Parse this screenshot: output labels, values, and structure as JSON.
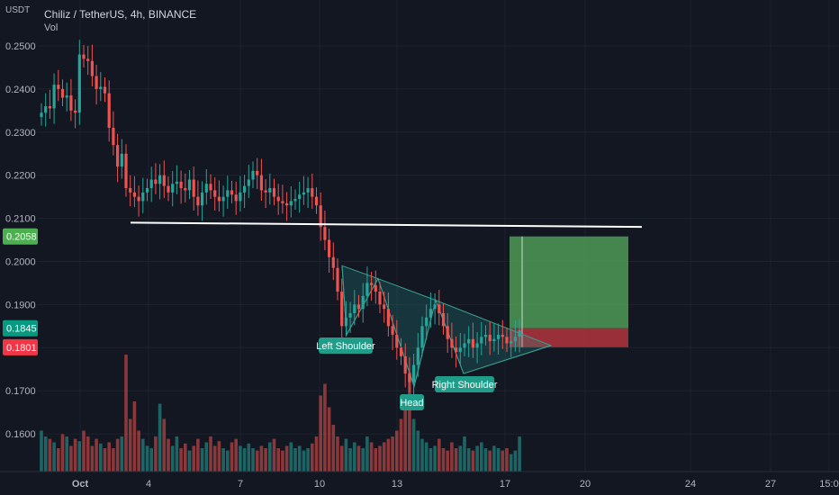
{
  "header": {
    "symbol_line": "Chiliz / TetherUS, 4h, BINANCE",
    "volume_label": "Vol",
    "unit": "USDT"
  },
  "colors": {
    "background": "#131722",
    "up": "#26a69a",
    "down": "#ef5350",
    "grid": "#1e222d",
    "text": "#b2b5be",
    "neckline": "#ffffff",
    "pattern_fill": "rgba(38,166,154,0.22)",
    "target_zone": "#4f9a57",
    "stop_zone": "#a9323b",
    "label_bg": "#1f9d88"
  },
  "chart_data": {
    "type": "candlestick",
    "title": "Chiliz / TetherUS, 4h, BINANCE",
    "price_range": [
      0.1537,
      0.2625
    ],
    "y_ticks": [
      "0.2500",
      "0.2400",
      "0.2300",
      "0.2200",
      "0.2100",
      "0.2000",
      "0.1900",
      "0.1800",
      "0.1700",
      "0.1600"
    ],
    "x_ticks": [
      "Oct",
      "4",
      "7",
      "10",
      "13",
      "17",
      "20",
      "24",
      "27",
      "15:0"
    ],
    "price_tags": [
      {
        "value": "0.2058",
        "kind": "target"
      },
      {
        "value": "0.1845",
        "kind": "entry"
      },
      {
        "value": "0.1801",
        "kind": "stop"
      }
    ],
    "neckline": {
      "start_price": 0.209,
      "end_price": 0.208
    },
    "pattern": "inverse head and shoulders",
    "pattern_labels": [
      "Left Shoulder",
      "Head",
      "Right Shoulder"
    ],
    "pattern_points": [
      0.199,
      0.183,
      0.196,
      0.171,
      0.191,
      0.174,
      0.1805
    ],
    "position": {
      "target": 0.2058,
      "entry": 0.1845,
      "stop": 0.1801
    },
    "closes": [
      0.2345,
      0.236,
      0.2355,
      0.241,
      0.24,
      0.238,
      0.2385,
      0.235,
      0.2345,
      0.248,
      0.247,
      0.2465,
      0.243,
      0.24,
      0.2405,
      0.239,
      0.231,
      0.227,
      0.222,
      0.225,
      0.217,
      0.216,
      0.215,
      0.214,
      0.216,
      0.217,
      0.219,
      0.218,
      0.22,
      0.2175,
      0.216,
      0.218,
      0.2185,
      0.217,
      0.2165,
      0.219,
      0.215,
      0.213,
      0.216,
      0.218,
      0.2165,
      0.215,
      0.214,
      0.215,
      0.2165,
      0.2155,
      0.214,
      0.216,
      0.2175,
      0.219,
      0.221,
      0.22,
      0.2165,
      0.216,
      0.217,
      0.215,
      0.214,
      0.2135,
      0.213,
      0.214,
      0.2145,
      0.2155,
      0.216,
      0.217,
      0.215,
      0.213,
      0.208,
      0.205,
      0.201,
      0.1985,
      0.193,
      0.185,
      0.187,
      0.188,
      0.19,
      0.189,
      0.192,
      0.195,
      0.1945,
      0.193,
      0.19,
      0.189,
      0.185,
      0.183,
      0.18,
      0.178,
      0.174,
      0.172,
      0.176,
      0.18,
      0.185,
      0.187,
      0.189,
      0.19,
      0.188,
      0.185,
      0.182,
      0.18,
      0.179,
      0.18,
      0.181,
      0.182,
      0.18,
      0.181,
      0.1825,
      0.183,
      0.1815,
      0.182,
      0.183,
      0.1825,
      0.181,
      0.1815,
      0.1825,
      0.184
    ],
    "volumes": [
      0.35,
      0.3,
      0.28,
      0.25,
      0.2,
      0.32,
      0.3,
      0.22,
      0.28,
      0.26,
      0.35,
      0.3,
      0.22,
      0.28,
      0.24,
      0.2,
      0.25,
      0.2,
      0.28,
      0.3,
      1.0,
      0.45,
      0.6,
      0.35,
      0.28,
      0.22,
      0.2,
      0.3,
      0.58,
      0.45,
      0.28,
      0.22,
      0.3,
      0.2,
      0.24,
      0.18,
      0.22,
      0.28,
      0.2,
      0.25,
      0.3,
      0.22,
      0.26,
      0.2,
      0.18,
      0.25,
      0.28,
      0.22,
      0.2,
      0.24,
      0.2,
      0.18,
      0.22,
      0.2,
      0.25,
      0.28,
      0.2,
      0.18,
      0.22,
      0.25,
      0.2,
      0.22,
      0.18,
      0.2,
      0.24,
      0.3,
      0.65,
      0.75,
      0.55,
      0.4,
      0.3,
      0.22,
      0.28,
      0.2,
      0.25,
      0.22,
      0.2,
      0.3,
      0.25,
      0.2,
      0.22,
      0.25,
      0.28,
      0.3,
      0.35,
      0.45,
      0.6,
      0.85,
      0.45,
      0.35,
      0.28,
      0.25,
      0.2,
      0.22,
      0.28,
      0.2,
      0.18,
      0.25,
      0.2,
      0.22,
      0.3,
      0.2,
      0.18,
      0.22,
      0.25,
      0.2,
      0.18,
      0.22,
      0.2,
      0.18,
      0.2,
      0.15,
      0.18,
      0.3
    ]
  }
}
